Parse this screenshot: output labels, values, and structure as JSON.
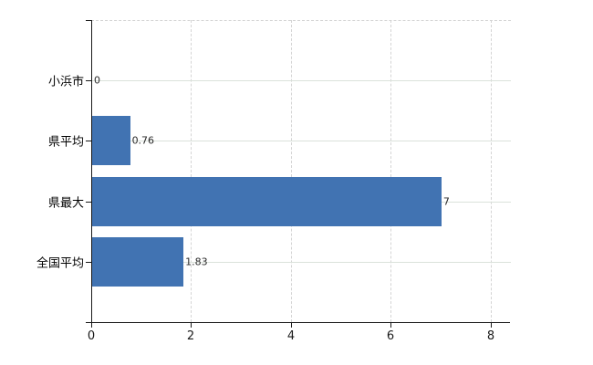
{
  "chart_data": {
    "type": "bar",
    "orientation": "horizontal",
    "title": "",
    "xlabel": "",
    "ylabel": "",
    "categories": [
      "小浜市",
      "県平均",
      "県最大",
      "全国平均"
    ],
    "values": [
      0,
      0.76,
      7,
      1.83
    ],
    "value_labels": [
      "0",
      "0.76",
      "7",
      "1.83"
    ],
    "x_ticks": [
      0,
      2,
      4,
      6,
      8
    ],
    "x_tick_labels": [
      "0",
      "2",
      "4",
      "6",
      "8"
    ],
    "xlim": [
      0,
      8.4
    ],
    "grid": true,
    "legend": false,
    "colors": {
      "bar": "#4173b2",
      "horizontal_grid": "#dbe2db",
      "vertical_grid": "#d4d4d4",
      "axis": "#1a1a1a",
      "category_text": "#000000",
      "value_text": "#2a2a2a",
      "tick_text": "#1a1a1a",
      "background": "#ffffff"
    }
  }
}
